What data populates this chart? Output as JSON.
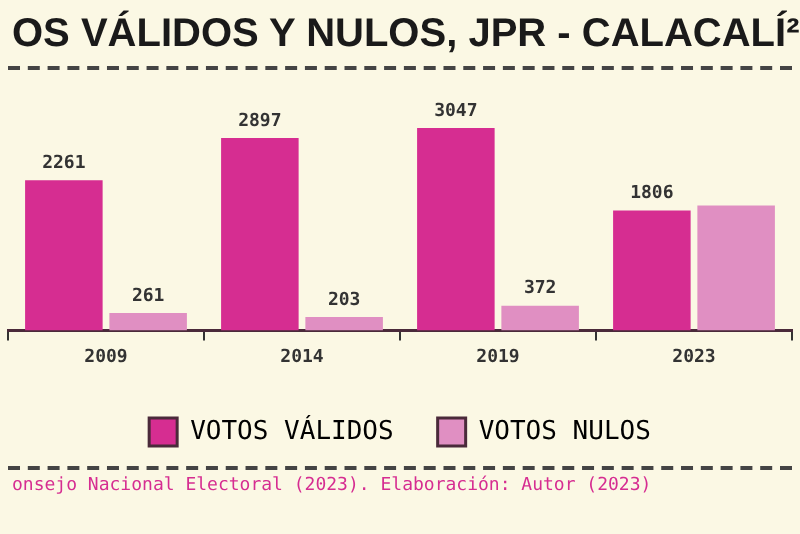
{
  "chart_data": {
    "type": "bar",
    "title": "OS VÁLIDOS Y NULOS, JPR - CALACALÍ²",
    "annotations": [
      "onsejo Nacional Electoral (2023). Elaboración: Autor (2023)"
    ],
    "categories": [
      "2009",
      "2014",
      "2019",
      "2023"
    ],
    "series": [
      {
        "name": "VOTOS VÁLIDOS",
        "color": "#d62d91",
        "values": [
          2261,
          2897,
          3047,
          1806
        ],
        "value_labels": [
          "2261",
          "2897",
          "3047",
          "1806"
        ]
      },
      {
        "name": "VOTOS NULOS",
        "color": "#e08fc2",
        "values": [
          261,
          203,
          372,
          1880
        ],
        "value_labels": [
          "261",
          "203",
          "372",
          null
        ]
      }
    ],
    "legend": "bottom"
  }
}
